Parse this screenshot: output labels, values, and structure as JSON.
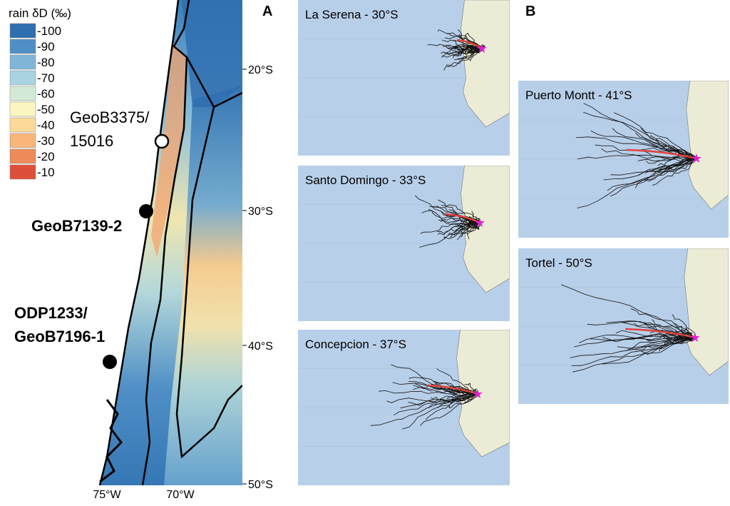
{
  "panel_a": {
    "label": "A",
    "legend": {
      "title": "rain δD (‰)",
      "items": [
        {
          "label": "-100",
          "color": "#2f6fb0"
        },
        {
          "label": "-90",
          "color": "#4f8fc6"
        },
        {
          "label": "-80",
          "color": "#80b5d8"
        },
        {
          "label": "-70",
          "color": "#a9d3e0"
        },
        {
          "label": "-60",
          "color": "#d5ead6"
        },
        {
          "label": "-50",
          "color": "#fbf6c0"
        },
        {
          "label": "-40",
          "color": "#fbda98"
        },
        {
          "label": "-30",
          "color": "#f8b67a"
        },
        {
          "label": "-20",
          "color": "#ef8a5a"
        },
        {
          "label": "-10",
          "color": "#dd4f38"
        }
      ]
    },
    "sites": [
      {
        "lines": [
          "GeoB3375/",
          "15016"
        ],
        "bold": false
      },
      {
        "lines": [
          "GeoB7139-2"
        ],
        "bold": true
      },
      {
        "lines": [
          "ODP1233/",
          "GeoB7196-1"
        ],
        "bold": true
      }
    ],
    "lat_ticks": [
      "20°S",
      "30°S",
      "40°S",
      "50°S"
    ],
    "lon_ticks": [
      "75°W",
      "70°W"
    ]
  },
  "panel_b": {
    "label": "B"
  },
  "trajectories": [
    {
      "title": "La Serena - 30°S"
    },
    {
      "title": "Santo Domingo - 33°S"
    },
    {
      "title": "Concepcion - 37°S"
    },
    {
      "title": "Puerto Montt - 41°S"
    },
    {
      "title": "Tortel - 50°S"
    }
  ]
}
